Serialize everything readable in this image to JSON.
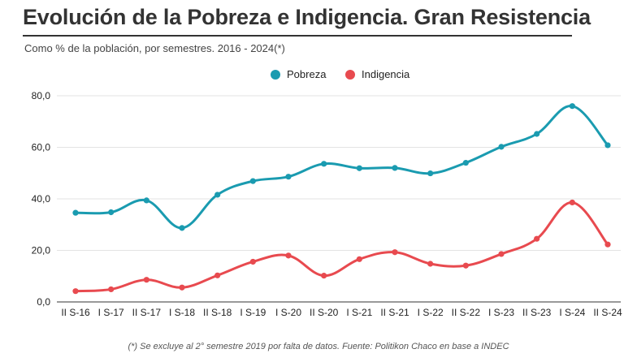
{
  "header": {
    "title": "Evolución de la Pobreza e Indigencia. Gran Resistencia",
    "subtitle": "Como % de la población, por semestres. 2016 - 2024(*)"
  },
  "footnote": "(*) Se excluye al 2° semestre 2019 por falta de datos. Fuente: Politikon Chaco en base a INDEC",
  "colors": {
    "pobreza": "#1a9bb0",
    "indigencia": "#e84a4f",
    "grid": "#e3e3e3",
    "axis": "#333333"
  },
  "chart_data": {
    "type": "line",
    "title": "Evolución de la Pobreza e Indigencia. Gran Resistencia",
    "subtitle": "Como % de la población, por semestres. 2016 - 2024(*)",
    "xlabel": "",
    "ylabel": "",
    "ylim": [
      0,
      80
    ],
    "yticks": [
      "0,0",
      "20,0",
      "40,0",
      "60,0",
      "80,0"
    ],
    "grid": true,
    "legend_position": "top-center",
    "categories": [
      "II S-16",
      "I S-17",
      "II S-17",
      "I S-18",
      "II S-18",
      "I S-19",
      "I S-20",
      "II S-20",
      "I S-21",
      "II S-21",
      "I S-22",
      "II S-22",
      "I S-23",
      "II S-23",
      "I S-24",
      "II S-24"
    ],
    "series": [
      {
        "name": "Pobreza",
        "color": "#1a9bb0",
        "values": [
          34.6,
          34.8,
          39.4,
          28.7,
          41.6,
          46.9,
          48.6,
          53.6,
          51.9,
          52.0,
          49.9,
          54.0,
          60.2,
          65.2,
          76.0,
          60.8
        ]
      },
      {
        "name": "Indigencia",
        "color": "#e84a4f",
        "values": [
          4.2,
          4.9,
          8.6,
          5.6,
          10.3,
          15.6,
          18.0,
          10.2,
          16.6,
          19.3,
          14.8,
          14.1,
          18.6,
          24.5,
          38.6,
          22.3
        ]
      }
    ]
  }
}
